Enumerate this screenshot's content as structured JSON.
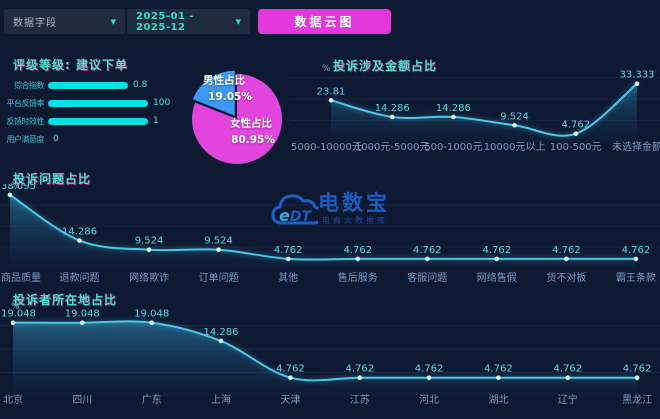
{
  "toolbar": {
    "field_selector": "数据字段",
    "date_range": "2025-01 - 2025-12",
    "cloud_button": "数据云图"
  },
  "icons": {
    "chevron_down": "▼"
  },
  "watermark": {
    "logo": "eDT",
    "brand": "电数宝",
    "tagline": "电商大数据库"
  },
  "colors": {
    "background": "#0d1931",
    "accent_cyan": "#00e2e4",
    "title_cyan": "#40e2d6",
    "magenta": "#e336dc",
    "pie_blue": "#3c98f0",
    "pie_magenta": "#e244de",
    "line_cyan": "#4cc8e6"
  },
  "chart_data": [
    {
      "type": "bar",
      "name": "rating",
      "title": "评级等级: 建议下单",
      "orientation": "horizontal",
      "categories": [
        "综合指数",
        "平台反馈率",
        "反馈时效性",
        "用户满意度"
      ],
      "values": [
        0.8,
        100,
        1,
        0
      ],
      "display_values": [
        "0.8",
        "100",
        "1",
        "0"
      ],
      "bar_pct": [
        80,
        100,
        100,
        0
      ]
    },
    {
      "type": "pie",
      "name": "gender",
      "slices": [
        {
          "label": "男性占比",
          "pct_label": "19.05%",
          "value": 19.05,
          "color": "#3c98f0"
        },
        {
          "label": "女性占比",
          "pct_label": "80.95%",
          "value": 80.95,
          "color": "#e244de"
        }
      ]
    },
    {
      "type": "line",
      "name": "amount",
      "title": "投诉涉及金额占比",
      "unit": "%",
      "categories": [
        "5000-10000元",
        "1000元-5000元",
        "500-1000元",
        "10000元以上",
        "100-500元",
        "未选择金额"
      ],
      "values": [
        23.81,
        14.286,
        14.286,
        9.524,
        4.762,
        33.333
      ],
      "ylim": [
        0,
        35
      ],
      "grid": true,
      "legend": "none"
    },
    {
      "type": "line",
      "name": "issue",
      "title": "投诉问题占比",
      "unit": "%",
      "categories": [
        "商品质量",
        "退款问题",
        "网络欺诈",
        "订单问题",
        "其他",
        "售后服务",
        "客服问题",
        "网络售假",
        "货不对板",
        "霸王条款"
      ],
      "values": [
        38.095,
        14.286,
        9.524,
        9.524,
        4.762,
        4.762,
        4.762,
        4.762,
        4.762,
        4.762
      ],
      "ylim": [
        0,
        40
      ],
      "grid": true,
      "legend": "none"
    },
    {
      "type": "line",
      "name": "region",
      "title": "投诉者所在地占比",
      "unit": "%",
      "categories": [
        "北京",
        "四川",
        "广东",
        "上海",
        "天津",
        "江苏",
        "河北",
        "湖北",
        "辽宁",
        "黑龙江"
      ],
      "values": [
        19.048,
        19.048,
        19.048,
        14.286,
        4.762,
        4.762,
        4.762,
        4.762,
        4.762,
        4.762
      ],
      "ylim": [
        0,
        20
      ],
      "grid": true,
      "legend": "none"
    }
  ]
}
